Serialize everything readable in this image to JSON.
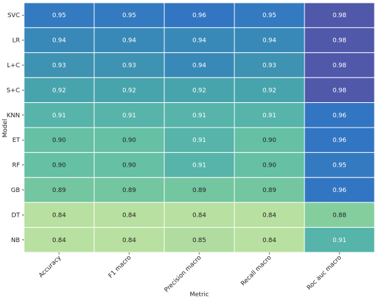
{
  "chart_data": {
    "type": "heatmap",
    "xlabel": "Metric",
    "ylabel": "Model",
    "x": [
      "Accuracy",
      "F1 macro",
      "Precision macro",
      "Recall macro",
      "Roc auc macro"
    ],
    "y": [
      "SVC",
      "LR",
      "L+C",
      "S+C",
      "KNN",
      "ET",
      "RF",
      "GB",
      "DT",
      "NB"
    ],
    "values": [
      [
        0.95,
        0.95,
        0.96,
        0.95,
        0.98
      ],
      [
        0.94,
        0.94,
        0.94,
        0.94,
        0.98
      ],
      [
        0.93,
        0.93,
        0.94,
        0.93,
        0.98
      ],
      [
        0.92,
        0.92,
        0.92,
        0.92,
        0.98
      ],
      [
        0.91,
        0.91,
        0.91,
        0.91,
        0.96
      ],
      [
        0.9,
        0.9,
        0.91,
        0.9,
        0.96
      ],
      [
        0.9,
        0.9,
        0.91,
        0.9,
        0.95
      ],
      [
        0.89,
        0.89,
        0.89,
        0.89,
        0.96
      ],
      [
        0.84,
        0.84,
        0.84,
        0.84,
        0.88
      ],
      [
        0.84,
        0.84,
        0.85,
        0.84,
        0.91
      ]
    ],
    "value_format": "0.00",
    "colormap": "viridis-like (yellow-green low to blue-purple high)",
    "legend": "none",
    "grid": false
  }
}
